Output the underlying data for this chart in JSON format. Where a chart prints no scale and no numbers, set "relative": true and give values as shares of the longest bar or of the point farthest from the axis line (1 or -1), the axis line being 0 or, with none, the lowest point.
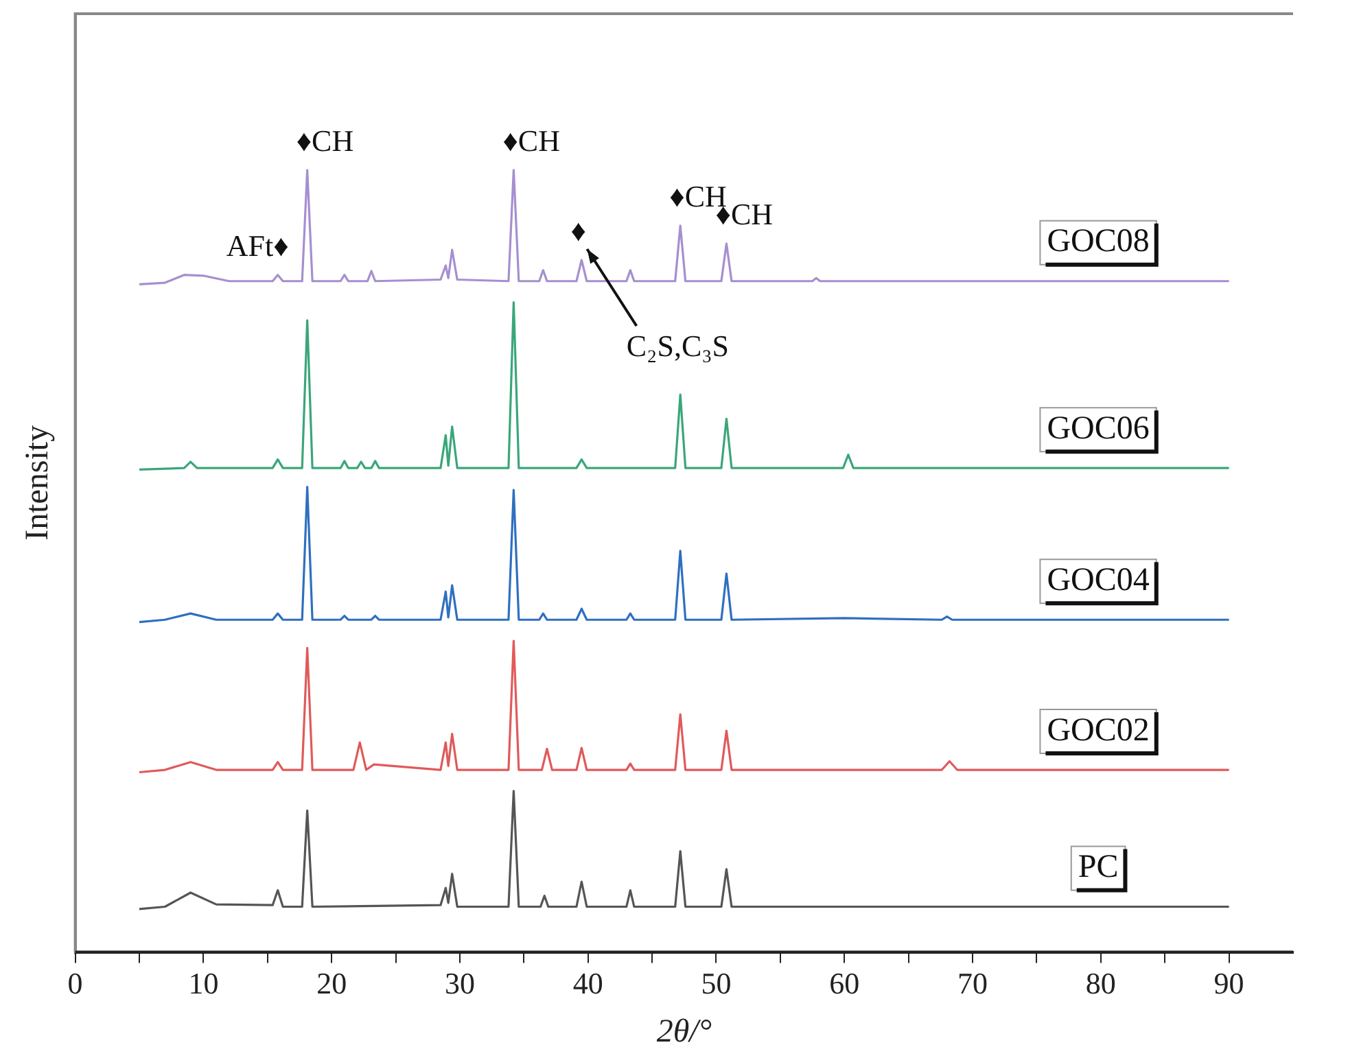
{
  "chart_data": {
    "type": "line",
    "relative": true,
    "xlabel": "2θ/°",
    "ylabel": "Intensity",
    "xlim": [
      0,
      95
    ],
    "xticks": [
      0,
      {
        "value": 5,
        "label": null
      },
      10,
      {
        "value": 15,
        "label": null
      },
      20,
      {
        "value": 25,
        "label": null
      },
      30,
      {
        "value": 35,
        "label": null
      },
      40,
      {
        "value": 45,
        "label": null
      },
      50,
      {
        "value": 55,
        "label": null
      },
      60,
      {
        "value": 65,
        "label": null
      },
      70,
      {
        "value": 75,
        "label": null
      },
      80,
      {
        "value": 85,
        "label": null
      },
      90
    ],
    "grid": false,
    "legend": false,
    "marker": "none",
    "line_style": "solid",
    "tick_labels": "x",
    "annotations": [
      {
        "text": "♦CH",
        "x": 18.1,
        "y": 1.0
      },
      {
        "text": "♦CH",
        "x": 34.2,
        "y": 1.0
      },
      {
        "text": "♦CH",
        "x": 47.2,
        "y": 0.929
      },
      {
        "text": "♦CH",
        "x": 50.8,
        "y": 0.906
      },
      {
        "text": "AFt♦",
        "x": 15.8,
        "y": 0.866
      },
      {
        "text": "♦",
        "x": 39.5,
        "y": 0.885
      },
      {
        "text": "C₂S,C₃S",
        "x": 39.5,
        "y": 0.885
      }
    ],
    "series": [
      {
        "name": "GOC08",
        "color": "#a58fd0",
        "x": [
          5,
          7,
          8.5,
          10,
          12,
          15.4,
          15.8,
          16.2,
          17.7,
          18.1,
          18.5,
          20.7,
          21,
          21.3,
          22.8,
          23.1,
          23.4,
          28.5,
          28.9,
          29.1,
          29.4,
          29.8,
          33.8,
          34.2,
          34.6,
          36.2,
          36.5,
          36.8,
          39.1,
          39.5,
          39.9,
          43,
          43.3,
          43.6,
          46.8,
          47.2,
          47.6,
          50.4,
          50.8,
          51.2,
          57.5,
          57.8,
          58.1,
          90
        ],
        "values": [
          0.854,
          0.856,
          0.866,
          0.865,
          0.858,
          0.858,
          0.866,
          0.858,
          0.858,
          1.0,
          0.858,
          0.858,
          0.866,
          0.858,
          0.858,
          0.871,
          0.858,
          0.86,
          0.878,
          0.862,
          0.898,
          0.86,
          0.858,
          1.0,
          0.858,
          0.858,
          0.872,
          0.858,
          0.858,
          0.885,
          0.858,
          0.858,
          0.872,
          0.858,
          0.858,
          0.929,
          0.858,
          0.858,
          0.906,
          0.858,
          0.858,
          0.862,
          0.858,
          0.858
        ]
      },
      {
        "name": "GOC06",
        "color": "#3aa67a",
        "x": [
          5,
          8.5,
          9,
          9.5,
          15.4,
          15.8,
          16.2,
          17.7,
          18.1,
          18.5,
          20.7,
          21,
          21.3,
          22,
          22.3,
          22.6,
          23.1,
          23.4,
          23.7,
          28.5,
          28.9,
          29.1,
          29.4,
          29.8,
          33.8,
          34.2,
          34.6,
          39.1,
          39.5,
          39.9,
          46.8,
          47.2,
          47.6,
          50.4,
          50.8,
          51.2,
          59.9,
          60.3,
          60.7,
          90
        ],
        "values": [
          0.617,
          0.619,
          0.627,
          0.619,
          0.619,
          0.63,
          0.619,
          0.619,
          0.808,
          0.619,
          0.619,
          0.628,
          0.619,
          0.619,
          0.627,
          0.619,
          0.619,
          0.628,
          0.619,
          0.619,
          0.661,
          0.622,
          0.672,
          0.619,
          0.619,
          0.831,
          0.619,
          0.619,
          0.63,
          0.619,
          0.619,
          0.713,
          0.619,
          0.619,
          0.682,
          0.619,
          0.619,
          0.636,
          0.619,
          0.619
        ]
      },
      {
        "name": "GOC04",
        "color": "#2f6fc0",
        "x": [
          5,
          7,
          9,
          11,
          15.4,
          15.8,
          16.2,
          17.7,
          18.1,
          18.5,
          20.7,
          21,
          21.3,
          23.1,
          23.4,
          23.7,
          28.5,
          28.9,
          29.1,
          29.4,
          29.8,
          33.8,
          34.2,
          34.6,
          36.2,
          36.5,
          36.8,
          39.1,
          39.5,
          39.9,
          43,
          43.3,
          43.6,
          46.8,
          47.2,
          47.6,
          50.4,
          50.8,
          51.2,
          60,
          67.6,
          68,
          68.4,
          90
        ],
        "values": [
          0.422,
          0.425,
          0.433,
          0.425,
          0.425,
          0.433,
          0.425,
          0.425,
          0.595,
          0.425,
          0.425,
          0.43,
          0.425,
          0.425,
          0.43,
          0.425,
          0.425,
          0.461,
          0.428,
          0.469,
          0.425,
          0.425,
          0.591,
          0.425,
          0.425,
          0.433,
          0.425,
          0.425,
          0.439,
          0.425,
          0.425,
          0.433,
          0.425,
          0.425,
          0.513,
          0.425,
          0.425,
          0.484,
          0.425,
          0.427,
          0.425,
          0.429,
          0.425,
          0.425
        ]
      },
      {
        "name": "GOC02",
        "color": "#e05a5a",
        "x": [
          5,
          7,
          9,
          11,
          15.4,
          15.8,
          16.2,
          17.7,
          18.1,
          18.5,
          21.7,
          22.2,
          22.7,
          23.3,
          28.5,
          28.9,
          29.1,
          29.4,
          29.8,
          33.8,
          34.2,
          34.6,
          36.4,
          36.8,
          37.2,
          39.1,
          39.5,
          39.9,
          43,
          43.3,
          43.6,
          46.8,
          47.2,
          47.6,
          50.4,
          50.8,
          51.2,
          67.6,
          68.2,
          68.8,
          90
        ],
        "values": [
          0.23,
          0.233,
          0.243,
          0.233,
          0.233,
          0.243,
          0.233,
          0.233,
          0.389,
          0.233,
          0.233,
          0.268,
          0.233,
          0.24,
          0.233,
          0.268,
          0.238,
          0.279,
          0.233,
          0.233,
          0.398,
          0.233,
          0.233,
          0.26,
          0.233,
          0.233,
          0.261,
          0.233,
          0.233,
          0.241,
          0.233,
          0.233,
          0.304,
          0.233,
          0.233,
          0.283,
          0.233,
          0.233,
          0.244,
          0.233,
          0.233
        ]
      },
      {
        "name": "PC",
        "color": "#555555",
        "x": [
          5,
          7,
          9,
          11,
          15.4,
          15.8,
          16.2,
          17.7,
          18.1,
          18.5,
          28.5,
          28.9,
          29.1,
          29.4,
          29.8,
          33.8,
          34.2,
          34.6,
          36.3,
          36.6,
          36.9,
          39.1,
          39.5,
          39.9,
          43,
          43.3,
          43.6,
          46.8,
          47.2,
          47.6,
          50.4,
          50.8,
          51.2,
          90
        ],
        "values": [
          0.055,
          0.058,
          0.076,
          0.061,
          0.06,
          0.079,
          0.058,
          0.058,
          0.181,
          0.058,
          0.06,
          0.082,
          0.063,
          0.1,
          0.058,
          0.058,
          0.206,
          0.058,
          0.058,
          0.072,
          0.058,
          0.058,
          0.09,
          0.058,
          0.058,
          0.079,
          0.058,
          0.058,
          0.129,
          0.058,
          0.058,
          0.106,
          0.058,
          0.058
        ]
      }
    ]
  }
}
